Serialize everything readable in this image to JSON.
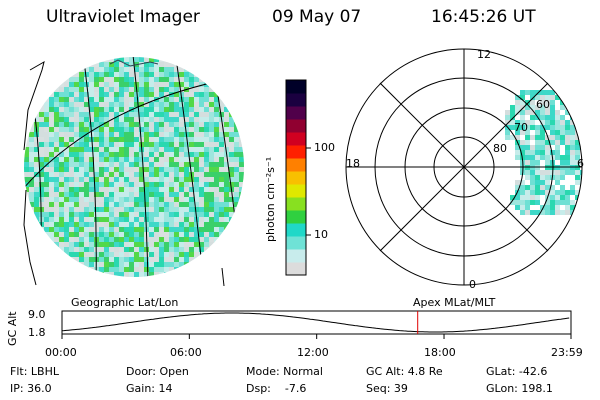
{
  "header": {
    "instrument": "Ultraviolet Imager",
    "date": "09 May 07",
    "time": "16:45:26 UT"
  },
  "colorbar": {
    "unit_label": "photon cm⁻²s⁻¹",
    "ticks": [
      {
        "label": "100",
        "value": 100
      },
      {
        "label": "10",
        "value": 10
      }
    ],
    "colors": [
      "#dcdcdc",
      "#c8ecec",
      "#6fe2d6",
      "#20d8c8",
      "#30d040",
      "#88e020",
      "#e0e800",
      "#f8c000",
      "#ff8000",
      "#ff2000",
      "#d00020",
      "#900030",
      "#50004a",
      "#1a0040",
      "#000028"
    ]
  },
  "left_panel": {
    "projection_label": "Geographic Lat/Lon"
  },
  "right_panel": {
    "projection_label": "Apex MLat/MLT",
    "mlt_labels": {
      "top": "12",
      "right": "6",
      "bottom": "0",
      "left": "18"
    },
    "mlat_labels": [
      "80",
      "70",
      "60"
    ]
  },
  "altitude_plot": {
    "axis_label": "GC Alt",
    "y_ticks": [
      "9.0",
      "1.8"
    ],
    "x_ticks": [
      "00:00",
      "06:00",
      "12:00",
      "18:00",
      "23:59"
    ],
    "current_time_marker_hours": 16.76,
    "marker_color": "#e00000"
  },
  "info": {
    "filter": "Flt: LBHL",
    "door": "Door: Open",
    "mode": "Mode: Normal",
    "gc_alt": "GC Alt: 4.8 Re",
    "glat": "GLat: -42.6",
    "ip": "IP: 36.0",
    "gain": "Gain: 14",
    "dsp": "Dsp:    -7.6",
    "seq": "Seq: 39",
    "glon": "GLon: 198.1"
  }
}
